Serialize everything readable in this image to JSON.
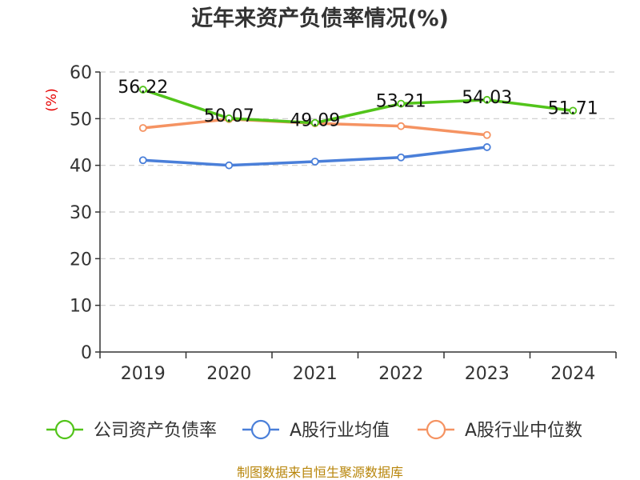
{
  "chart_data": {
    "type": "line",
    "title": "近年来资产负债率情况(%)",
    "ylabel": "(%)",
    "xlabel": "",
    "categories": [
      "2019",
      "2020",
      "2021",
      "2022",
      "2023",
      "2024"
    ],
    "ylim": [
      0,
      60
    ],
    "yticks": [
      0,
      10,
      20,
      30,
      40,
      50,
      60
    ],
    "grid": true,
    "legend_position": "bottom",
    "series": [
      {
        "name": "公司资产负债率",
        "color": "#52c41a",
        "values": [
          56.22,
          50.07,
          49.09,
          53.21,
          54.03,
          51.71
        ],
        "labels": [
          "56.22",
          "50.07",
          "49.09",
          "53.21",
          "54.03",
          "51.71"
        ]
      },
      {
        "name": "A股行业均值",
        "color": "#4a7fd9",
        "values": [
          41.1,
          40.0,
          40.8,
          41.7,
          43.9,
          null
        ]
      },
      {
        "name": "A股行业中位数",
        "color": "#f59362",
        "values": [
          48.0,
          49.9,
          49.0,
          48.4,
          46.5,
          null
        ]
      }
    ],
    "source": "制图数据来自恒生聚源数据库"
  }
}
